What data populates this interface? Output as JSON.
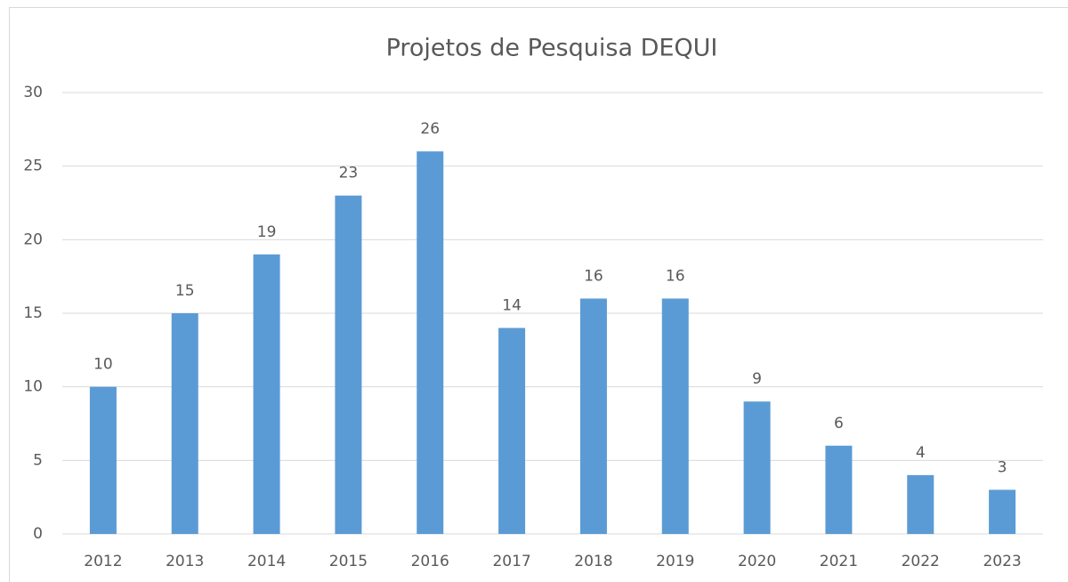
{
  "chart_data": {
    "type": "bar",
    "title": "Projetos de Pesquisa DEQUI",
    "categories": [
      "2012",
      "2013",
      "2014",
      "2015",
      "2016",
      "2017",
      "2018",
      "2019",
      "2020",
      "2021",
      "2022",
      "2023"
    ],
    "values": [
      10,
      15,
      19,
      23,
      26,
      14,
      16,
      16,
      9,
      6,
      4,
      3
    ],
    "color": "#5b9bd5",
    "ylim": [
      0,
      30
    ],
    "yticks": [
      0,
      5,
      10,
      15,
      20,
      25,
      30
    ],
    "grid": true,
    "data_labels": true
  }
}
